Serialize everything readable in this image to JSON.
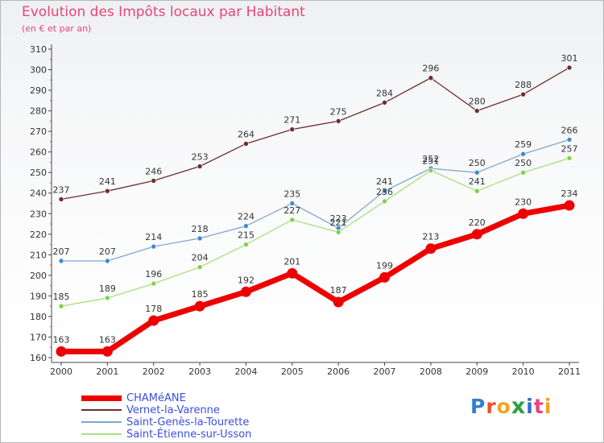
{
  "header": {
    "title": "Evolution des Impôts locaux par Habitant",
    "subtitle": "(en € et par an)"
  },
  "logo": {
    "text": "Proxiti",
    "parts": [
      "P",
      "r",
      "o",
      "x",
      "i",
      "t",
      "i"
    ],
    "colors": [
      "#2f7fd0",
      "#e8522a",
      "#f0a322",
      "#27a23c",
      "#2a6fc4",
      "#e8447a",
      "#f0a322"
    ]
  },
  "chart_data": {
    "type": "line",
    "title": "Evolution des Impôts locaux par Habitant",
    "subtitle": "(en € et par an)",
    "xlabel": "",
    "ylabel": "",
    "ylim": [
      160,
      310
    ],
    "ytick_step": 10,
    "grid": false,
    "legend_position": "bottom-left",
    "categories": [
      "2000",
      "2001",
      "2002",
      "2003",
      "2004",
      "2005",
      "2006",
      "2007",
      "2008",
      "2009",
      "2010",
      "2011"
    ],
    "series": [
      {
        "name": "Vernet-la-Varenne",
        "values": [
          237,
          241,
          246,
          253,
          264,
          271,
          275,
          284,
          296,
          280,
          288,
          301
        ],
        "color": "#6e2d2d",
        "marker": "#6e2d2d",
        "emphasis": false
      },
      {
        "name": "Saint-Genès-la-Tourette",
        "values": [
          207,
          207,
          214,
          218,
          224,
          235,
          223,
          241,
          252,
          250,
          259,
          266
        ],
        "color": "#7fa7cf",
        "marker": "#3d8bd2",
        "emphasis": false
      },
      {
        "name": "Saint-Étienne-sur-Usson",
        "values": [
          185,
          189,
          196,
          204,
          215,
          227,
          221,
          236,
          251,
          241,
          250,
          257
        ],
        "color": "#a6e07c",
        "marker": "#7fd24a",
        "emphasis": false
      },
      {
        "name": "CHAMéANE",
        "values": [
          163,
          163,
          178,
          185,
          192,
          201,
          187,
          199,
          213,
          220,
          230,
          234
        ],
        "color": "#ee0000",
        "marker": "#ee0000",
        "emphasis": true
      }
    ]
  }
}
